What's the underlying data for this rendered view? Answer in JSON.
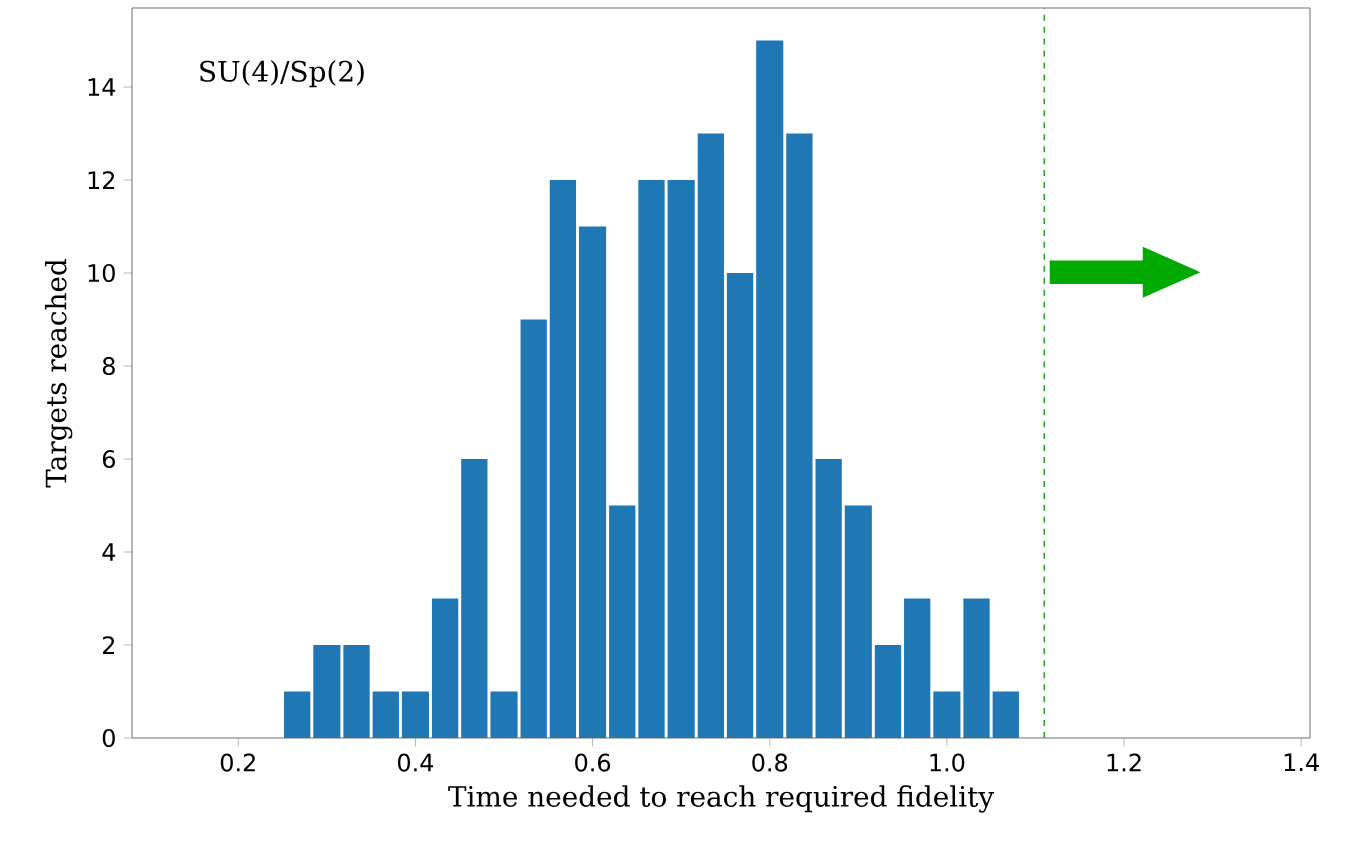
{
  "chart_data": {
    "type": "histogram",
    "title": "SU(4)/Sp(2)",
    "xlabel": "Time needed to reach required fidelity",
    "ylabel": "Targets reached",
    "bins": [
      0.25,
      0.283,
      0.317,
      0.35,
      0.383,
      0.417,
      0.45,
      0.483,
      0.517,
      0.55,
      0.583,
      0.617,
      0.65,
      0.683,
      0.717,
      0.75,
      0.783,
      0.817,
      0.85,
      0.883,
      0.917,
      0.95,
      0.983,
      1.017,
      1.05,
      1.083
    ],
    "values": [
      1,
      2,
      2,
      1,
      1,
      3,
      6,
      1,
      9,
      12,
      11,
      5,
      12,
      12,
      13,
      10,
      15,
      13,
      6,
      5,
      2,
      3,
      1,
      3,
      1
    ],
    "color": "#1f77b4",
    "xlim": [
      0.08,
      1.41
    ],
    "ylim": [
      0,
      15.7
    ],
    "xticks": [
      0.2,
      0.4,
      0.6,
      0.8,
      {
        "value": 1,
        "label": "1.0"
      },
      1.2,
      1.4
    ],
    "yticks": [
      0,
      2,
      4,
      6,
      8,
      10,
      12,
      14
    ],
    "ref_lines": [
      {
        "axis": "x",
        "value": 1.11,
        "color": "#2ca02c",
        "line_style": "dashed"
      }
    ]
  }
}
